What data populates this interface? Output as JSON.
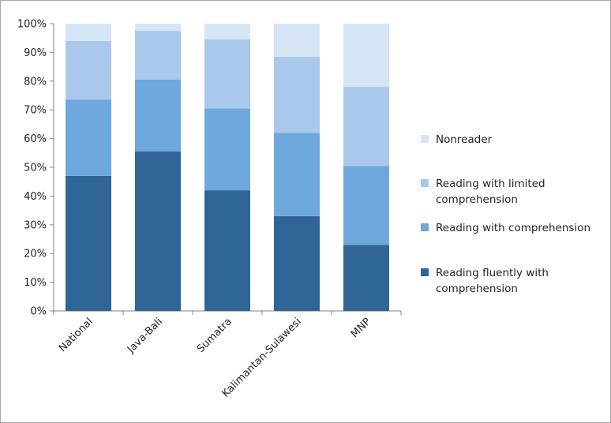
{
  "chart_data": {
    "type": "bar",
    "stacked": true,
    "categories": [
      "National",
      "Java-Bali",
      "Sumatra",
      "Kalimantan-Sulawesi",
      "MNP"
    ],
    "series": [
      {
        "name": "Reading fluently with comprehension",
        "values": [
          47,
          55.5,
          42,
          33,
          23
        ],
        "color": "#2e6496"
      },
      {
        "name": "Reading with comprehension",
        "values": [
          26.5,
          25,
          28.5,
          29,
          27.5
        ],
        "color": "#6fa8dc"
      },
      {
        "name": "Reading with limited comprehension",
        "values": [
          20.5,
          17,
          24,
          26.5,
          27.5
        ],
        "color": "#a9c8eb"
      },
      {
        "name": "Nonreader",
        "values": [
          6,
          2.5,
          5.5,
          11.5,
          22
        ],
        "color": "#d6e5f5"
      }
    ],
    "title": "",
    "xlabel": "",
    "ylabel": "",
    "ylim": [
      0,
      100
    ],
    "yticks": [
      "0%",
      "10%",
      "20%",
      "30%",
      "40%",
      "50%",
      "60%",
      "70%",
      "80%",
      "90%",
      "100%"
    ],
    "legend_position": "right",
    "legend_order": [
      3,
      2,
      1,
      0
    ],
    "legend_lines": [
      [
        "Nonreader"
      ],
      [
        "Reading with limited",
        "comprehension"
      ],
      [
        "Reading with comprehension"
      ],
      [
        "Reading fluently with",
        "comprehension"
      ]
    ],
    "grid": false
  }
}
